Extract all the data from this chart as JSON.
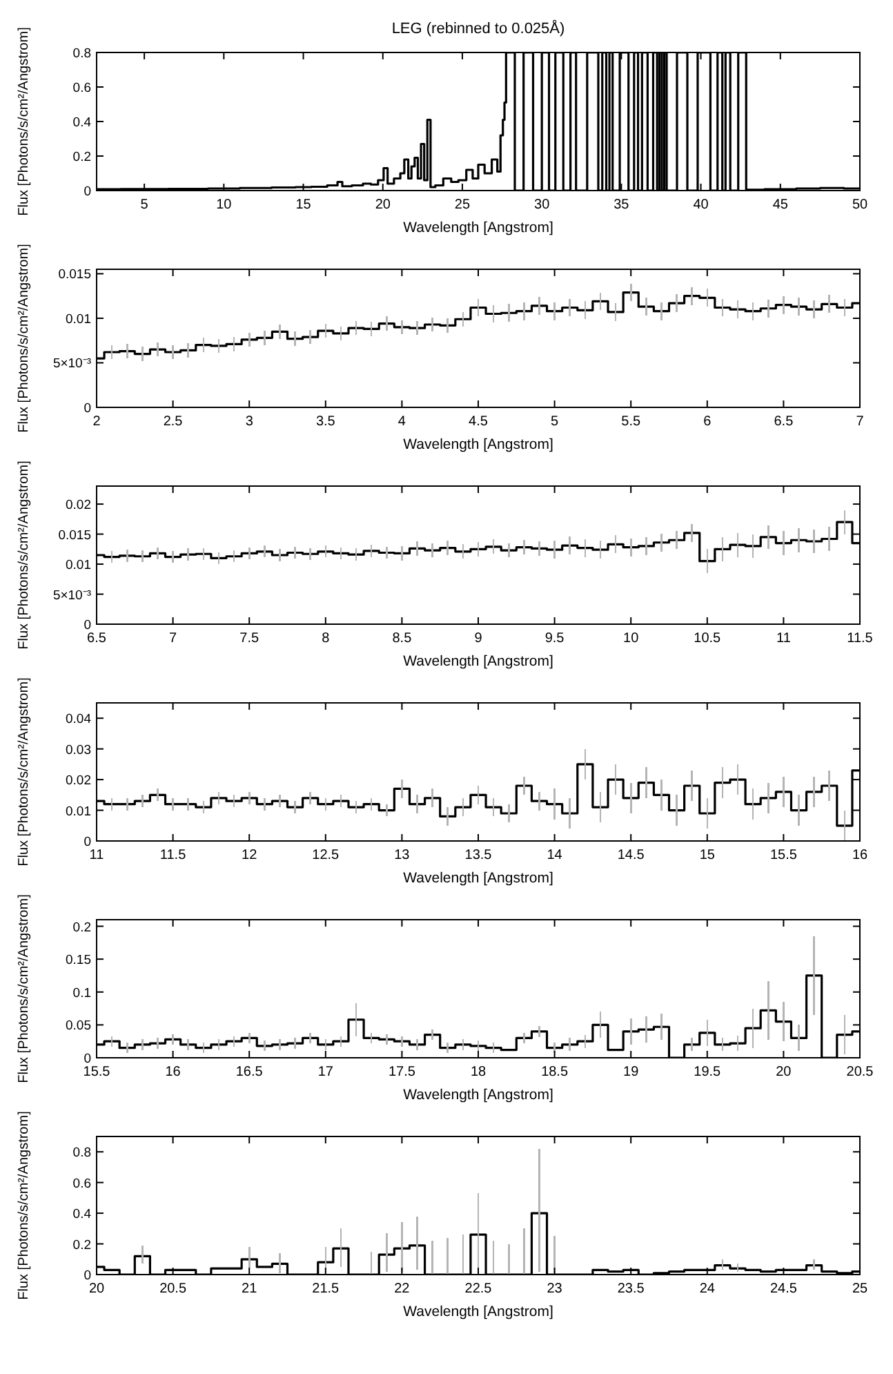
{
  "chart_data": [
    {
      "type": "step",
      "title": "LEG (rebinned to 0.025Å)",
      "xlabel": "Wavelength [Angstrom]",
      "ylabel": "Flux [Photons/s/cm²/Angstrom]",
      "xlim": [
        2,
        50
      ],
      "xticks": [
        5,
        10,
        15,
        20,
        25,
        30,
        35,
        40,
        45,
        50
      ],
      "ylim": [
        0,
        0.8
      ],
      "yticks": [
        0,
        0.2,
        0.4,
        0.6,
        0.8
      ],
      "series": [
        {
          "color": "#000000",
          "x": [
            2,
            5,
            8,
            10,
            12,
            14,
            15,
            16,
            17,
            17.3,
            17.6,
            18.5,
            19,
            19.5,
            19.9,
            20.2,
            20.4,
            21,
            21.2,
            21.5,
            21.7,
            21.9,
            22.1,
            22.3,
            22.5,
            22.7,
            22.9,
            23.1,
            23.5,
            24.1,
            24.5,
            25,
            25.5,
            25.8,
            26.2,
            26.6,
            27.1,
            27.3,
            27.5,
            27.6,
            27.7,
            27.8,
            28.2,
            28.4,
            29.3,
            29.6,
            30.4,
            30.5,
            31.2,
            31.5,
            32.1,
            32.2,
            33.5,
            33.6,
            34,
            34.1,
            34.4,
            34.5,
            35.3,
            35.6,
            36,
            36.1,
            36.5,
            36.8,
            37.2,
            37.3,
            37.5,
            37.6,
            37.8,
            37.9,
            39.1,
            39.2,
            40.4,
            40.8,
            41.3,
            41.4,
            41.7,
            42,
            42.7,
            43,
            45,
            47,
            48,
            50
          ],
          "values": [
            0.008,
            0.009,
            0.01,
            0.012,
            0.015,
            0.018,
            0.02,
            0.022,
            0.03,
            0.05,
            0.025,
            0.03,
            0.04,
            0.035,
            0.06,
            0.13,
            0.04,
            0.07,
            0.1,
            0.18,
            0.07,
            0.14,
            0.19,
            0.07,
            0.27,
            0.06,
            0.41,
            0.02,
            0.03,
            0.07,
            0.05,
            0.06,
            0.12,
            0.07,
            0.15,
            0.1,
            0.18,
            0.11,
            0.32,
            0.41,
            0.51,
            0.8,
            0.8,
            0,
            0.8,
            0,
            0.8,
            0,
            0.8,
            0,
            0.8,
            0,
            0.8,
            0,
            0.8,
            0,
            0.8,
            0,
            0.8,
            0,
            0.8,
            0,
            0.8,
            0,
            0.8,
            0,
            0.8,
            0,
            0.8,
            0,
            0.8,
            0,
            0.8,
            0,
            0.8,
            0,
            0.8,
            0,
            0.8,
            0.005,
            0.008,
            0.012,
            0.015,
            0.012
          ]
        }
      ]
    },
    {
      "type": "step",
      "xlabel": "Wavelength [Angstrom]",
      "ylabel": "Flux [Photons/s/cm²/Angstrom]",
      "xlim": [
        2,
        7
      ],
      "xticks": [
        2,
        2.5,
        3,
        3.5,
        4,
        4.5,
        5,
        5.5,
        6,
        6.5,
        7
      ],
      "ylim": [
        0,
        0.0155
      ],
      "yticks": [
        0,
        {
          "value": 0.005,
          "label": "5×10⁻³"
        },
        0.01,
        0.015
      ],
      "series": [
        {
          "color": "#000000",
          "x": [
            2,
            2.1,
            2.2,
            2.3,
            2.4,
            2.5,
            2.6,
            2.7,
            2.8,
            2.9,
            3,
            3.1,
            3.2,
            3.3,
            3.4,
            3.5,
            3.6,
            3.7,
            3.8,
            3.9,
            4,
            4.1,
            4.2,
            4.3,
            4.4,
            4.5,
            4.6,
            4.7,
            4.8,
            4.9,
            5,
            5.1,
            5.2,
            5.3,
            5.4,
            5.5,
            5.6,
            5.7,
            5.8,
            5.9,
            6,
            6.1,
            6.2,
            6.3,
            6.4,
            6.5,
            6.6,
            6.7,
            6.8,
            6.9,
            7
          ],
          "values": [
            0.0055,
            0.0062,
            0.0063,
            0.006,
            0.0065,
            0.0062,
            0.0064,
            0.007,
            0.0069,
            0.0071,
            0.0076,
            0.0078,
            0.0085,
            0.0077,
            0.0079,
            0.0086,
            0.0083,
            0.0089,
            0.0088,
            0.0094,
            0.009,
            0.0089,
            0.0093,
            0.0092,
            0.0099,
            0.0112,
            0.0105,
            0.0106,
            0.0108,
            0.0114,
            0.0108,
            0.0112,
            0.0109,
            0.0119,
            0.0107,
            0.0129,
            0.0113,
            0.0108,
            0.0117,
            0.0125,
            0.0123,
            0.0112,
            0.011,
            0.0108,
            0.0111,
            0.0115,
            0.0113,
            0.011,
            0.0116,
            0.0112,
            0.0117
          ],
          "errors": [
            0.0008,
            0.0008,
            0.0008,
            0.0008,
            0.0008,
            0.0008,
            0.0008,
            0.0008,
            0.0008,
            0.0008,
            0.0008,
            0.0008,
            0.0008,
            0.0008,
            0.0008,
            0.0008,
            0.0008,
            0.0008,
            0.0008,
            0.0008,
            0.0008,
            0.0008,
            0.0008,
            0.0008,
            0.0008,
            0.001,
            0.001,
            0.001,
            0.001,
            0.001,
            0.001,
            0.001,
            0.001,
            0.001,
            0.001,
            0.001,
            0.001,
            0.001,
            0.001,
            0.001,
            0.001,
            0.001,
            0.001,
            0.001,
            0.001,
            0.001,
            0.001,
            0.001,
            0.001,
            0.001,
            0.001
          ]
        }
      ]
    },
    {
      "type": "step",
      "xlabel": "Wavelength [Angstrom]",
      "ylabel": "Flux [Photons/s/cm²/Angstrom]",
      "xlim": [
        6.5,
        11.5
      ],
      "xticks": [
        6.5,
        7,
        7.5,
        8,
        8.5,
        9,
        9.5,
        10,
        10.5,
        11,
        11.5
      ],
      "ylim": [
        0,
        0.023
      ],
      "yticks": [
        0,
        {
          "value": 0.005,
          "label": "5×10⁻³"
        },
        0.01,
        0.015,
        0.02
      ],
      "series": [
        {
          "color": "#000000",
          "x": [
            6.5,
            6.6,
            6.7,
            6.8,
            6.9,
            7,
            7.1,
            7.2,
            7.3,
            7.4,
            7.5,
            7.6,
            7.7,
            7.8,
            7.9,
            8,
            8.1,
            8.2,
            8.3,
            8.4,
            8.5,
            8.6,
            8.7,
            8.8,
            8.9,
            9,
            9.1,
            9.2,
            9.3,
            9.4,
            9.5,
            9.6,
            9.7,
            9.8,
            9.9,
            10,
            10.1,
            10.2,
            10.3,
            10.4,
            10.5,
            10.6,
            10.7,
            10.8,
            10.9,
            11,
            11.1,
            11.2,
            11.3,
            11.4,
            11.5
          ],
          "values": [
            0.0115,
            0.0112,
            0.0114,
            0.0113,
            0.0118,
            0.0112,
            0.0116,
            0.0117,
            0.011,
            0.0113,
            0.0118,
            0.0121,
            0.0115,
            0.0119,
            0.0117,
            0.0121,
            0.0118,
            0.0116,
            0.0122,
            0.0119,
            0.0118,
            0.0126,
            0.0123,
            0.0127,
            0.0121,
            0.0125,
            0.0129,
            0.0123,
            0.0128,
            0.0126,
            0.0124,
            0.0131,
            0.0127,
            0.0124,
            0.0133,
            0.0128,
            0.013,
            0.0136,
            0.014,
            0.0152,
            0.0105,
            0.0125,
            0.0132,
            0.013,
            0.0145,
            0.0135,
            0.014,
            0.0138,
            0.0142,
            0.017,
            0.0135
          ],
          "errors": [
            0.001,
            0.001,
            0.001,
            0.001,
            0.001,
            0.001,
            0.001,
            0.001,
            0.001,
            0.001,
            0.001,
            0.001,
            0.001,
            0.001,
            0.001,
            0.001,
            0.001,
            0.001,
            0.001,
            0.001,
            0.0012,
            0.0012,
            0.0012,
            0.0012,
            0.0012,
            0.0012,
            0.0012,
            0.0012,
            0.0012,
            0.0012,
            0.0015,
            0.0015,
            0.0015,
            0.0015,
            0.0015,
            0.0015,
            0.0015,
            0.0015,
            0.0015,
            0.0015,
            0.002,
            0.002,
            0.002,
            0.002,
            0.002,
            0.002,
            0.002,
            0.002,
            0.002,
            0.002,
            0.002
          ]
        }
      ]
    },
    {
      "type": "step",
      "xlabel": "Wavelength [Angstrom]",
      "ylabel": "Flux [Photons/s/cm²/Angstrom]",
      "xlim": [
        11,
        16
      ],
      "xticks": [
        11,
        11.5,
        12,
        12.5,
        13,
        13.5,
        14,
        14.5,
        15,
        15.5,
        16
      ],
      "ylim": [
        0,
        0.045
      ],
      "yticks": [
        0,
        0.01,
        0.02,
        0.03,
        0.04
      ],
      "series": [
        {
          "color": "#000000",
          "x": [
            11,
            11.1,
            11.2,
            11.3,
            11.4,
            11.5,
            11.6,
            11.7,
            11.8,
            11.9,
            12,
            12.1,
            12.2,
            12.3,
            12.4,
            12.5,
            12.6,
            12.7,
            12.8,
            12.9,
            13,
            13.1,
            13.2,
            13.3,
            13.4,
            13.5,
            13.6,
            13.7,
            13.8,
            13.9,
            14,
            14.1,
            14.2,
            14.3,
            14.4,
            14.5,
            14.6,
            14.7,
            14.8,
            14.9,
            15,
            15.1,
            15.2,
            15.3,
            15.4,
            15.5,
            15.6,
            15.7,
            15.8,
            15.9,
            16
          ],
          "values": [
            0.013,
            0.012,
            0.012,
            0.013,
            0.015,
            0.012,
            0.012,
            0.011,
            0.014,
            0.013,
            0.014,
            0.012,
            0.013,
            0.011,
            0.014,
            0.012,
            0.013,
            0.011,
            0.012,
            0.01,
            0.017,
            0.012,
            0.014,
            0.008,
            0.011,
            0.015,
            0.011,
            0.009,
            0.018,
            0.013,
            0.012,
            0.009,
            0.025,
            0.011,
            0.02,
            0.014,
            0.019,
            0.015,
            0.01,
            0.018,
            0.009,
            0.019,
            0.02,
            0.012,
            0.014,
            0.016,
            0.01,
            0.016,
            0.018,
            0.005,
            0.023
          ],
          "errors": [
            0.002,
            0.002,
            0.002,
            0.002,
            0.002,
            0.002,
            0.002,
            0.002,
            0.002,
            0.002,
            0.002,
            0.002,
            0.002,
            0.002,
            0.002,
            0.002,
            0.002,
            0.002,
            0.002,
            0.002,
            0.003,
            0.003,
            0.003,
            0.003,
            0.003,
            0.003,
            0.003,
            0.003,
            0.003,
            0.003,
            0.005,
            0.005,
            0.005,
            0.005,
            0.005,
            0.005,
            0.005,
            0.005,
            0.005,
            0.005,
            0.005,
            0.005,
            0.005,
            0.005,
            0.005,
            0.005,
            0.005,
            0.005,
            0.005,
            0.005,
            0.005
          ]
        }
      ]
    },
    {
      "type": "step",
      "xlabel": "Wavelength [Angstrom]",
      "ylabel": "Flux [Photons/s/cm²/Angstrom]",
      "xlim": [
        15.5,
        20.5
      ],
      "xticks": [
        15.5,
        16,
        16.5,
        17,
        17.5,
        18,
        18.5,
        19,
        19.5,
        20,
        20.5
      ],
      "ylim": [
        0,
        0.21
      ],
      "yticks": [
        0,
        0.05,
        0.1,
        0.15,
        0.2
      ],
      "series": [
        {
          "color": "#000000",
          "x": [
            15.5,
            15.6,
            15.7,
            15.8,
            15.9,
            16,
            16.1,
            16.2,
            16.3,
            16.4,
            16.5,
            16.6,
            16.7,
            16.8,
            16.9,
            17,
            17.1,
            17.2,
            17.3,
            17.4,
            17.5,
            17.6,
            17.7,
            17.8,
            17.9,
            18,
            18.1,
            18.2,
            18.3,
            18.4,
            18.5,
            18.6,
            18.7,
            18.8,
            18.9,
            19,
            19.1,
            19.2,
            19.3,
            19.4,
            19.5,
            19.6,
            19.7,
            19.8,
            19.9,
            20,
            20.1,
            20.2,
            20.3,
            20.4,
            20.5
          ],
          "values": [
            0.02,
            0.025,
            0.015,
            0.02,
            0.022,
            0.028,
            0.02,
            0.015,
            0.02,
            0.025,
            0.03,
            0.018,
            0.02,
            0.022,
            0.03,
            0.02,
            0.025,
            0.058,
            0.03,
            0.028,
            0.025,
            0.02,
            0.035,
            0.015,
            0.02,
            0.018,
            0.015,
            0.012,
            0.03,
            0.04,
            0.015,
            0.02,
            0.025,
            0.05,
            0.012,
            0.04,
            0.043,
            0.047,
            0,
            0.02,
            0.038,
            0.02,
            0.022,
            0.045,
            0.072,
            0.055,
            0.03,
            0.125,
            0,
            0.035,
            0.04
          ],
          "errors": [
            0.008,
            0.008,
            0.008,
            0.008,
            0.008,
            0.008,
            0.008,
            0.008,
            0.008,
            0.008,
            0.008,
            0.008,
            0.008,
            0.008,
            0.008,
            0.008,
            0.008,
            0.025,
            0.008,
            0.008,
            0.008,
            0.008,
            0.008,
            0.008,
            0.008,
            0.008,
            0.008,
            null,
            0.008,
            0.008,
            0.008,
            0.01,
            0.01,
            0.02,
            null,
            0.02,
            0.02,
            0.02,
            null,
            0.01,
            0.02,
            0.01,
            0.012,
            0.03,
            0.045,
            0.03,
            0.02,
            0.06,
            null,
            0.03,
            0.03
          ]
        }
      ]
    },
    {
      "type": "step",
      "xlabel": "Wavelength [Angstrom]",
      "ylabel": "Flux [Photons/s/cm²/Angstrom]",
      "xlim": [
        20,
        25
      ],
      "xticks": [
        20,
        20.5,
        21,
        21.5,
        22,
        22.5,
        23,
        23.5,
        24,
        24.5,
        25
      ],
      "ylim": [
        0,
        0.9
      ],
      "yticks": [
        0,
        0.2,
        0.4,
        0.6,
        0.8
      ],
      "series": [
        {
          "color": "#000000",
          "x": [
            20,
            20.1,
            20.2,
            20.3,
            20.4,
            20.5,
            20.6,
            20.7,
            20.8,
            20.9,
            21,
            21.1,
            21.2,
            21.3,
            21.4,
            21.5,
            21.6,
            21.7,
            21.8,
            21.9,
            22,
            22.1,
            22.2,
            22.3,
            22.4,
            22.5,
            22.6,
            22.7,
            22.8,
            22.9,
            23,
            23.1,
            23.2,
            23.3,
            23.4,
            23.5,
            23.6,
            23.7,
            23.8,
            23.9,
            24,
            24.1,
            24.2,
            24.3,
            24.4,
            24.5,
            24.6,
            24.7,
            24.8,
            24.9,
            25
          ],
          "values": [
            0.05,
            0.03,
            0,
            0.12,
            0,
            0.03,
            0.03,
            0,
            0.04,
            0.04,
            0.1,
            0.05,
            0.07,
            0,
            0,
            0.08,
            0.17,
            0,
            0,
            0.13,
            0.17,
            0.19,
            0,
            0,
            0,
            0.26,
            0,
            0,
            0,
            0.4,
            0,
            0,
            0,
            0.03,
            0.02,
            0.03,
            0,
            0.01,
            0.02,
            0.03,
            0.03,
            0.06,
            0.04,
            0.03,
            0.02,
            0.03,
            0.03,
            0.06,
            0.02,
            0.01,
            0.02
          ],
          "errors": [
            [
              0.03,
              0.07
            ],
            null,
            null,
            [
              0.07,
              0.19
            ],
            null,
            null,
            null,
            null,
            null,
            null,
            [
              0.04,
              0.18
            ],
            null,
            [
              0.01,
              0.14
            ],
            null,
            null,
            [
              0.02,
              0.18
            ],
            [
              0.05,
              0.3
            ],
            null,
            [
              0,
              0.15
            ],
            [
              0.02,
              0.27
            ],
            [
              0.02,
              0.34
            ],
            [
              0.03,
              0.38
            ],
            [
              0,
              0.22
            ],
            [
              0,
              0.24
            ],
            [
              0,
              0.26
            ],
            [
              0.03,
              0.53
            ],
            [
              0,
              0.22
            ],
            [
              0,
              0.2
            ],
            [
              0,
              0.3
            ],
            [
              0.02,
              0.82
            ],
            [
              0,
              0.25
            ],
            null,
            null,
            null,
            null,
            null,
            null,
            null,
            null,
            null,
            null,
            [
              0.03,
              0.1
            ],
            [
              0.02,
              0.07
            ],
            null,
            null,
            null,
            null,
            [
              0.03,
              0.1
            ],
            null,
            null,
            [
              0,
              0.04
            ]
          ]
        }
      ]
    }
  ]
}
